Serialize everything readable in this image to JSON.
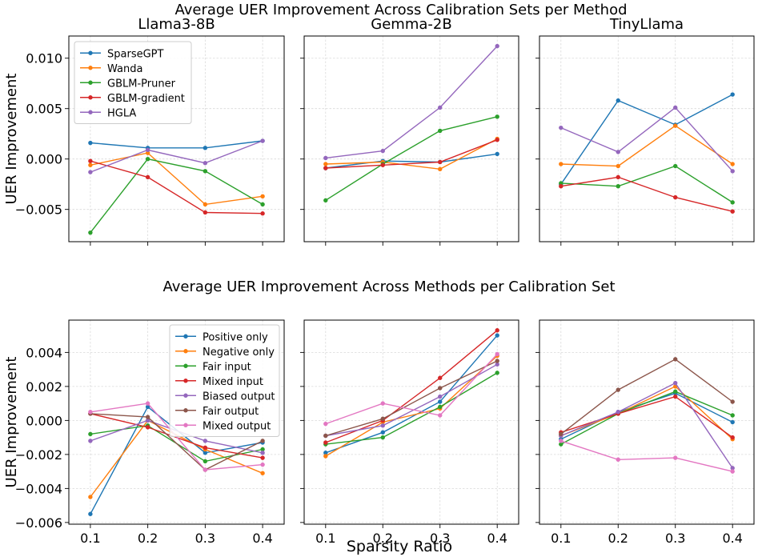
{
  "colors": {
    "SparseGPT": "#1f77b4",
    "Wanda": "#ff7f0e",
    "GBLM-Pruner": "#2ca02c",
    "GBLM-gradient": "#d62728",
    "HGLA": "#9467bd",
    "Positive only": "#1f77b4",
    "Negative only": "#ff7f0e",
    "Fair input": "#2ca02c",
    "Mixed input": "#d62728",
    "Biased output": "#9467bd",
    "Fair output": "#8c564b",
    "Mixed output": "#e377c2"
  },
  "figure": {
    "title_top": "Average UER Improvement Across Calibration Sets per Method",
    "title_bottom": "Average UER Improvement Across Methods per Calibration Set",
    "xlabel": "Sparsity Ratio"
  },
  "chart_data": [
    {
      "type": "line",
      "row": 0,
      "title": "Llama3-8B",
      "ylabel": "UER Improvement",
      "ylim": [
        -0.0082,
        0.0122
      ],
      "yticks": [
        -0.005,
        0.0,
        0.005,
        0.01
      ],
      "ytick_labels": [
        "−0.005",
        "0.000",
        "0.005",
        "0.010"
      ],
      "x": [
        0.1,
        0.2,
        0.3,
        0.4
      ],
      "legend": "upper left",
      "series": [
        {
          "name": "SparseGPT",
          "values": [
            0.0016,
            0.0011,
            0.0011,
            0.0018
          ]
        },
        {
          "name": "Wanda",
          "values": [
            -0.0006,
            0.0006,
            -0.0045,
            -0.0037
          ]
        },
        {
          "name": "GBLM-Pruner",
          "values": [
            -0.0073,
            0.0,
            -0.0012,
            -0.0045
          ]
        },
        {
          "name": "GBLM-gradient",
          "values": [
            -0.0002,
            -0.0018,
            -0.0053,
            -0.0054
          ]
        },
        {
          "name": "HGLA",
          "values": [
            -0.0013,
            0.0009,
            -0.0004,
            0.0018
          ]
        }
      ]
    },
    {
      "type": "line",
      "row": 0,
      "title": "Gemma-2B",
      "ylim": [
        -0.0082,
        0.0122
      ],
      "yticks": [
        -0.005,
        0.0,
        0.005,
        0.01
      ],
      "x": [
        0.1,
        0.2,
        0.3,
        0.4
      ],
      "series": [
        {
          "name": "SparseGPT",
          "values": [
            -0.0009,
            -0.0002,
            -0.0003,
            0.0005
          ]
        },
        {
          "name": "Wanda",
          "values": [
            -0.0005,
            -0.0003,
            -0.001,
            0.002
          ]
        },
        {
          "name": "GBLM-Pruner",
          "values": [
            -0.0041,
            -0.0005,
            0.0028,
            0.0042
          ]
        },
        {
          "name": "GBLM-gradient",
          "values": [
            -0.0009,
            -0.0006,
            -0.0003,
            0.0019
          ]
        },
        {
          "name": "HGLA",
          "values": [
            0.0001,
            0.0008,
            0.0051,
            0.0112
          ]
        }
      ]
    },
    {
      "type": "line",
      "row": 0,
      "title": "TinyLlama",
      "ylim": [
        -0.0082,
        0.0122
      ],
      "yticks": [
        -0.005,
        0.0,
        0.005,
        0.01
      ],
      "x": [
        0.1,
        0.2,
        0.3,
        0.4
      ],
      "series": [
        {
          "name": "SparseGPT",
          "values": [
            -0.0025,
            0.0058,
            0.0034,
            0.0064
          ]
        },
        {
          "name": "Wanda",
          "values": [
            -0.0005,
            -0.0007,
            0.0033,
            -0.0005
          ]
        },
        {
          "name": "GBLM-Pruner",
          "values": [
            -0.0024,
            -0.0027,
            -0.0007,
            -0.0043
          ]
        },
        {
          "name": "GBLM-gradient",
          "values": [
            -0.0027,
            -0.0018,
            -0.0038,
            -0.0052
          ]
        },
        {
          "name": "HGLA",
          "values": [
            0.0031,
            0.0007,
            0.0051,
            -0.0012
          ]
        }
      ]
    },
    {
      "type": "line",
      "row": 1,
      "title": "",
      "ylabel": "UER Improvement",
      "ylim": [
        -0.0061,
        0.0059
      ],
      "yticks": [
        -0.006,
        -0.004,
        -0.002,
        0.0,
        0.002,
        0.004
      ],
      "ytick_labels": [
        "−0.006",
        "−0.004",
        "−0.002",
        "0.000",
        "0.002",
        "0.004"
      ],
      "x": [
        0.1,
        0.2,
        0.3,
        0.4
      ],
      "xtick_labels": [
        "0.1",
        "0.2",
        "0.3",
        "0.4"
      ],
      "legend": "upper right",
      "series": [
        {
          "name": "Positive only",
          "values": [
            -0.0055,
            0.0008,
            -0.0019,
            -0.0013
          ]
        },
        {
          "name": "Negative only",
          "values": [
            -0.0045,
            0.0,
            -0.0017,
            -0.0031
          ]
        },
        {
          "name": "Fair input",
          "values": [
            -0.0008,
            -0.0003,
            -0.0024,
            -0.0017
          ]
        },
        {
          "name": "Mixed input",
          "values": [
            0.0004,
            -0.0004,
            -0.0016,
            -0.0022
          ]
        },
        {
          "name": "Biased output",
          "values": [
            -0.0012,
            0.0,
            -0.0012,
            -0.0019
          ]
        },
        {
          "name": "Fair output",
          "values": [
            0.0004,
            0.0002,
            -0.0029,
            -0.0012
          ]
        },
        {
          "name": "Mixed output",
          "values": [
            0.0005,
            0.001,
            -0.0029,
            -0.0026
          ]
        }
      ]
    },
    {
      "type": "line",
      "row": 1,
      "title": "",
      "ylim": [
        -0.0061,
        0.0059
      ],
      "yticks": [
        -0.006,
        -0.004,
        -0.002,
        0.0,
        0.002,
        0.004
      ],
      "x": [
        0.1,
        0.2,
        0.3,
        0.4
      ],
      "xtick_labels": [
        "0.1",
        "0.2",
        "0.3",
        "0.4"
      ],
      "series": [
        {
          "name": "Positive only",
          "values": [
            -0.0019,
            -0.0007,
            0.0011,
            0.005
          ]
        },
        {
          "name": "Negative only",
          "values": [
            -0.0021,
            -0.0001,
            0.0007,
            0.0038
          ]
        },
        {
          "name": "Fair input",
          "values": [
            -0.0014,
            -0.001,
            0.0008,
            0.0028
          ]
        },
        {
          "name": "Mixed input",
          "values": [
            -0.0013,
            0.0,
            0.0025,
            0.0053
          ]
        },
        {
          "name": "Biased output",
          "values": [
            -0.0009,
            -0.0003,
            0.0014,
            0.0033
          ]
        },
        {
          "name": "Fair output",
          "values": [
            -0.0009,
            0.0001,
            0.0019,
            0.0035
          ]
        },
        {
          "name": "Mixed output",
          "values": [
            -0.0002,
            0.001,
            0.0003,
            0.0039
          ]
        }
      ]
    },
    {
      "type": "line",
      "row": 1,
      "title": "",
      "ylim": [
        -0.0061,
        0.0059
      ],
      "yticks": [
        -0.006,
        -0.004,
        -0.002,
        0.0,
        0.002,
        0.004
      ],
      "x": [
        0.1,
        0.2,
        0.3,
        0.4
      ],
      "xtick_labels": [
        "0.1",
        "0.2",
        "0.3",
        "0.4"
      ],
      "series": [
        {
          "name": "Positive only",
          "values": [
            -0.0011,
            0.0005,
            0.0016,
            -0.0001
          ]
        },
        {
          "name": "Negative only",
          "values": [
            -0.0009,
            0.0004,
            0.002,
            -0.0011
          ]
        },
        {
          "name": "Fair input",
          "values": [
            -0.0014,
            0.0004,
            0.0017,
            0.0003
          ]
        },
        {
          "name": "Mixed input",
          "values": [
            -0.0007,
            0.0004,
            0.0014,
            -0.001
          ]
        },
        {
          "name": "Biased output",
          "values": [
            -0.0009,
            0.0005,
            0.0022,
            -0.0028
          ]
        },
        {
          "name": "Fair output",
          "values": [
            -0.0008,
            0.0018,
            0.0036,
            0.0011
          ]
        },
        {
          "name": "Mixed output",
          "values": [
            -0.0012,
            -0.0023,
            -0.0022,
            -0.003
          ]
        }
      ]
    }
  ]
}
